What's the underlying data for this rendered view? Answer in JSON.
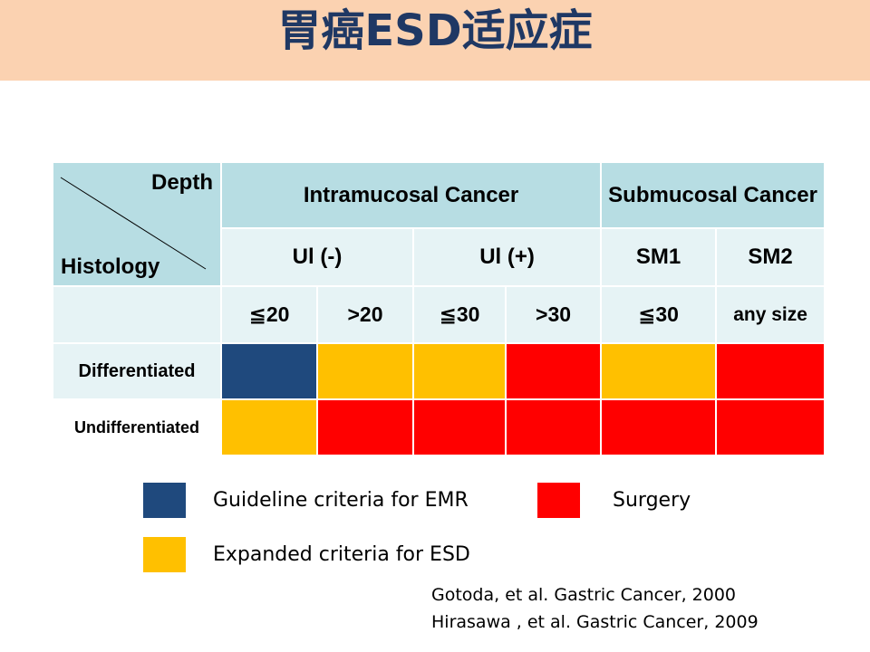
{
  "title": "胃癌ESD适应症",
  "table": {
    "corner_top": "Depth",
    "corner_bottom": "Histology",
    "group_intramucosal": "Intramucosal Cancer",
    "group_submucosal": "Submucosal Cancer",
    "sub_ul_neg": "Ul (-)",
    "sub_ul_pos": "Ul (+)",
    "sub_sm1": "SM1",
    "sub_sm2": "SM2",
    "sizes": [
      "≦20",
      ">20",
      "≦30",
      ">30",
      "≦30",
      "any size"
    ],
    "rows": [
      {
        "label": "Differentiated",
        "cells": [
          "blue",
          "yellow",
          "yellow",
          "red",
          "yellow",
          "red"
        ]
      },
      {
        "label": "Undifferentiated",
        "cells": [
          "yellow",
          "red",
          "red",
          "red",
          "red",
          "red"
        ]
      }
    ]
  },
  "colors": {
    "blue": "#1f497d",
    "yellow": "#ffc000",
    "red": "#ff0000",
    "title_bar": "#fbd2b1",
    "header": "#b7dde3"
  },
  "legend": {
    "emr": "Guideline criteria for EMR",
    "esd": "Expanded criteria for ESD",
    "surgery": "Surgery"
  },
  "references": [
    "Gotoda, et al. Gastric Cancer,  2000",
    "Hirasawa , et al. Gastric Cancer, 2009"
  ]
}
